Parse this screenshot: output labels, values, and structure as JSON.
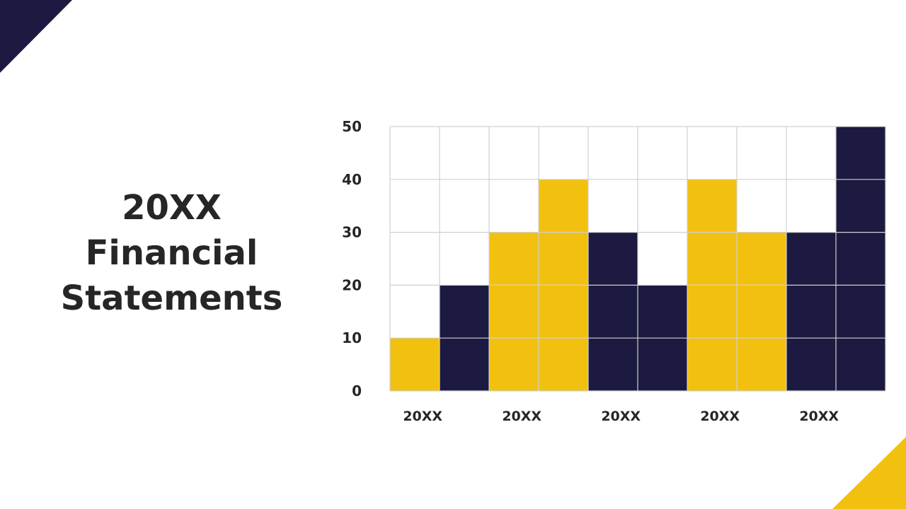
{
  "slide": {
    "title_lines": [
      "20XX",
      "Financial",
      "Statements"
    ]
  },
  "colors": {
    "accent_yellow": "#F2C10F",
    "accent_navy": "#1C1A40",
    "grid": "#D0D0D0",
    "text": "#262626"
  },
  "chart_data": {
    "type": "bar",
    "categories": [
      "20XX",
      "20XX",
      "20XX",
      "20XX",
      "20XX"
    ],
    "series": [
      {
        "color": "#F2C10F",
        "values": [
          10,
          30,
          30,
          40,
          30
        ]
      },
      {
        "color": "#1C1A40",
        "values": [
          20,
          40,
          20,
          30,
          50
        ]
      }
    ],
    "series_order_note_free": true,
    "bars": [
      10,
      20,
      30,
      40,
      30,
      20,
      40,
      30,
      30,
      50
    ],
    "bar_colors": [
      "#F2C10F",
      "#1C1A40",
      "#F2C10F",
      "#F2C10F",
      "#1C1A40",
      "#1C1A40",
      "#F2C10F",
      "#F2C10F",
      "#1C1A40",
      "#1C1A40"
    ],
    "yticks": [
      "0",
      "10",
      "20",
      "30",
      "40",
      "50"
    ],
    "ylim": [
      0,
      50
    ],
    "grid": true,
    "legend": "none"
  }
}
